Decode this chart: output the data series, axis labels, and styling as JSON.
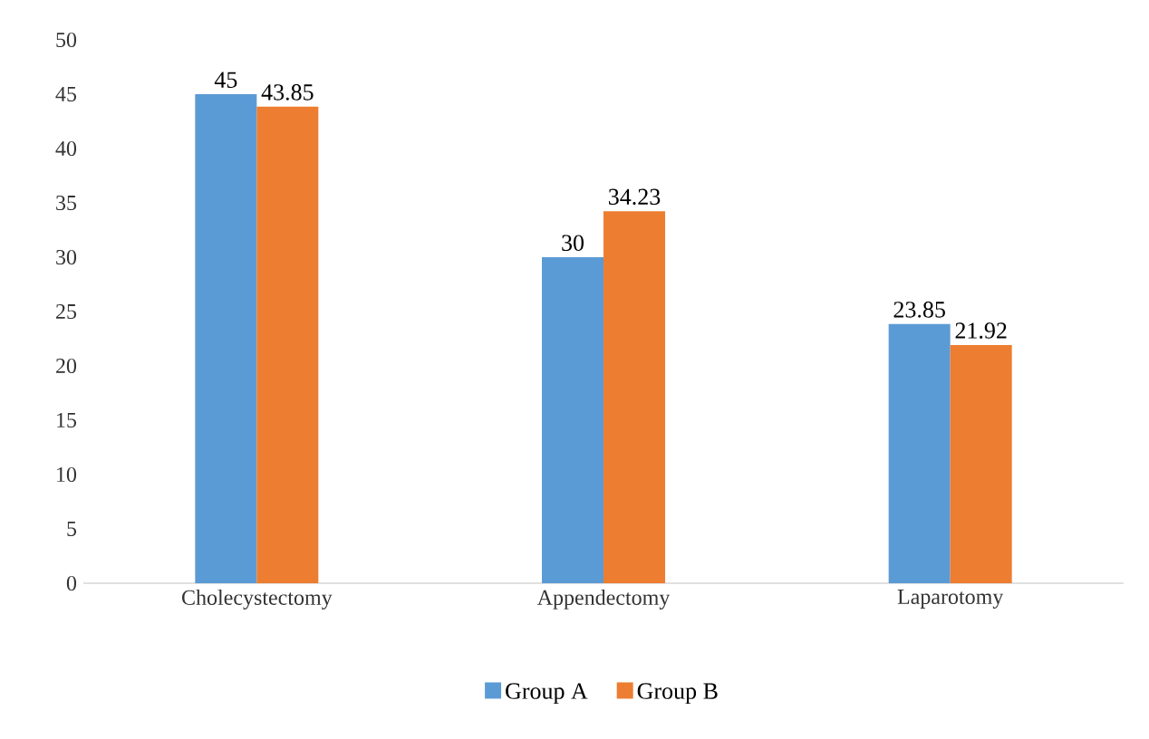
{
  "chart_data": {
    "type": "bar",
    "categories": [
      "Cholecystectomy",
      "Appendectomy",
      "Laparotomy"
    ],
    "series": [
      {
        "name": "Group A",
        "color": "#5b9bd5",
        "values": [
          45,
          30,
          23.85
        ]
      },
      {
        "name": "Group B",
        "color": "#ed7d31",
        "values": [
          43.85,
          34.23,
          21.92
        ]
      }
    ],
    "ylim": [
      0,
      50
    ],
    "yticks": [
      0,
      5,
      10,
      15,
      20,
      25,
      30,
      35,
      40,
      45,
      50
    ],
    "data_labels": true,
    "legend": "bottom",
    "grid": false
  }
}
